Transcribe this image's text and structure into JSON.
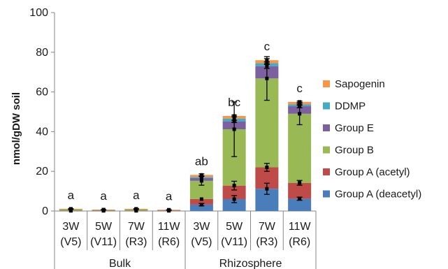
{
  "chart_data": {
    "type": "bar",
    "stacked": true,
    "ylabel": "nmol/gDW soil",
    "ylim": [
      0,
      100
    ],
    "yticks": [
      0,
      20,
      40,
      60,
      80,
      100
    ],
    "categories": [
      {
        "line1": "3W",
        "line2": "(V5)"
      },
      {
        "line1": "5W",
        "line2": "(V11)"
      },
      {
        "line1": "7W",
        "line2": "(R3)"
      },
      {
        "line1": "11W",
        "line2": "(R6)"
      },
      {
        "line1": "3W",
        "line2": "(V5)"
      },
      {
        "line1": "5W",
        "line2": "(V11)"
      },
      {
        "line1": "7W",
        "line2": "(R3)"
      },
      {
        "line1": "11W",
        "line2": "(R6)"
      }
    ],
    "groups": [
      {
        "label": "Bulk",
        "start": 0,
        "end": 3
      },
      {
        "label": "Rhizosphere",
        "start": 4,
        "end": 7
      }
    ],
    "significance": [
      "a",
      "a",
      "a",
      "a",
      "ab",
      "bc",
      "c",
      "c"
    ],
    "series": [
      {
        "name": "Group A (deacetyl)",
        "color": "#4a7ebb",
        "values": [
          0.1,
          0.1,
          0.1,
          0.1,
          3.2,
          6.0,
          11.2,
          6.2
        ],
        "errors": [
          0,
          0,
          0,
          0,
          0.6,
          1.8,
          2.8,
          0.8
        ]
      },
      {
        "name": "Group A (acetyl)",
        "color": "#be4b48",
        "values": [
          0.1,
          0.1,
          0.1,
          0.1,
          2.8,
          6.8,
          10.8,
          8.0
        ],
        "errors": [
          0,
          0,
          0,
          0,
          0,
          2.2,
          2.0,
          1.2
        ]
      },
      {
        "name": "Group B",
        "color": "#98b954",
        "values": [
          0.8,
          0.4,
          0.8,
          0.3,
          9.2,
          28.4,
          44.8,
          34.8
        ],
        "errors": [
          0.2,
          0.1,
          0.2,
          0.1,
          2.2,
          13.8,
          11.0,
          5.5
        ]
      },
      {
        "name": "Group E",
        "color": "#7d60a0",
        "values": [
          0.05,
          0.05,
          0.05,
          0.05,
          1.4,
          4.0,
          6.2,
          3.8
        ],
        "errors": [
          0,
          0,
          0,
          0,
          0,
          0.5,
          1.2,
          0.8
        ]
      },
      {
        "name": "DDMP",
        "color": "#46aac5",
        "values": [
          0,
          0,
          0,
          0,
          0.6,
          1.4,
          1.5,
          1.0
        ],
        "errors": [
          0,
          0,
          0,
          0,
          0,
          0,
          0.6,
          0.5
        ]
      },
      {
        "name": "Sapogenin",
        "color": "#f79646",
        "values": [
          0.05,
          0.05,
          0.05,
          0.05,
          1.0,
          1.3,
          1.5,
          1.2
        ],
        "errors": [
          0,
          0,
          0,
          0,
          0.5,
          0.4,
          0.8,
          0.4
        ]
      }
    ],
    "legend_order": [
      "Sapogenin",
      "DDMP",
      "Group E",
      "Group B",
      "Group A (acetyl)",
      "Group A (deacetyl)"
    ],
    "legend_position": "right",
    "grid": false
  }
}
